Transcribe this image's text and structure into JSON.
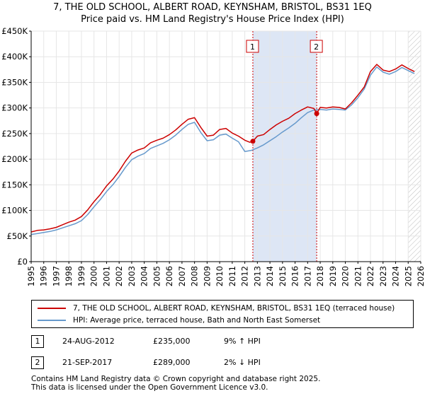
{
  "title": {
    "line1": "7, THE OLD SCHOOL, ALBERT ROAD, KEYNSHAM, BRISTOL, BS31 1EQ",
    "line2": "Price paid vs. HM Land Registry's House Price Index (HPI)"
  },
  "colors": {
    "property": "#cc0000",
    "hpi": "#6699cc",
    "shade": "#dde6f5"
  },
  "chart_data": {
    "type": "line",
    "title": "Price paid vs. HM Land Registry's House Price Index (HPI)",
    "xlabel": "",
    "ylabel": "",
    "xlim": [
      1995,
      2026
    ],
    "ylim": [
      0,
      450000
    ],
    "x_ticks": [
      "1995",
      "1996",
      "1997",
      "1998",
      "1999",
      "2000",
      "2001",
      "2002",
      "2003",
      "2004",
      "2005",
      "2006",
      "2007",
      "2008",
      "2009",
      "2010",
      "2011",
      "2012",
      "2013",
      "2014",
      "2015",
      "2016",
      "2017",
      "2018",
      "2019",
      "2020",
      "2021",
      "2022",
      "2023",
      "2024",
      "2025",
      "2026"
    ],
    "y_ticks": [
      {
        "value": 0,
        "label": "£0"
      },
      {
        "value": 50000,
        "label": "£50K"
      },
      {
        "value": 100000,
        "label": "£100K"
      },
      {
        "value": 150000,
        "label": "£150K"
      },
      {
        "value": 200000,
        "label": "£200K"
      },
      {
        "value": 250000,
        "label": "£250K"
      },
      {
        "value": 300000,
        "label": "£300K"
      },
      {
        "value": 350000,
        "label": "£350K"
      },
      {
        "value": 400000,
        "label": "£400K"
      },
      {
        "value": 450000,
        "label": "£450K"
      }
    ],
    "series": [
      {
        "name": "7, THE OLD SCHOOL, ALBERT ROAD, KEYNSHAM, BRISTOL, BS31 1EQ (terraced house)",
        "color": "#cc0000",
        "x": [
          1995,
          1995.5,
          1996,
          1996.5,
          1997,
          1997.5,
          1998,
          1998.5,
          1999,
          1999.5,
          2000,
          2000.5,
          2001,
          2001.5,
          2002,
          2002.5,
          2003,
          2003.5,
          2004,
          2004.5,
          2005,
          2005.5,
          2006,
          2006.5,
          2007,
          2007.5,
          2008,
          2008.5,
          2009,
          2009.5,
          2010,
          2010.5,
          2011,
          2011.5,
          2012,
          2012.4,
          2012.64,
          2013,
          2013.5,
          2014,
          2014.5,
          2015,
          2015.5,
          2016,
          2016.5,
          2017,
          2017.5,
          2017.72,
          2018,
          2018.5,
          2019,
          2019.5,
          2020,
          2020.5,
          2021,
          2021.5,
          2022,
          2022.5,
          2023,
          2023.5,
          2024,
          2024.5,
          2025,
          2025.5
        ],
        "y": [
          58000,
          61000,
          62000,
          64000,
          67000,
          72000,
          77000,
          81000,
          88000,
          101000,
          117000,
          131000,
          148000,
          161000,
          177000,
          196000,
          212000,
          218000,
          222000,
          232000,
          237000,
          241000,
          248000,
          257000,
          268000,
          278000,
          281000,
          262000,
          245000,
          247000,
          258000,
          260000,
          251000,
          245000,
          237000,
          233000,
          235000,
          245000,
          248000,
          258000,
          267000,
          274000,
          280000,
          289000,
          296000,
          302000,
          299000,
          289000,
          301000,
          300000,
          302000,
          301000,
          298000,
          310000,
          325000,
          341000,
          371000,
          385000,
          374000,
          371000,
          376000,
          384000,
          377000,
          371000
        ]
      },
      {
        "name": "HPI: Average price, terraced house, Bath and North East Somerset",
        "color": "#6699cc",
        "x": [
          1995,
          1995.5,
          1996,
          1996.5,
          1997,
          1997.5,
          1998,
          1998.5,
          1999,
          1999.5,
          2000,
          2000.5,
          2001,
          2001.5,
          2002,
          2002.5,
          2003,
          2003.5,
          2004,
          2004.5,
          2005,
          2005.5,
          2006,
          2006.5,
          2007,
          2007.5,
          2008,
          2008.5,
          2009,
          2009.5,
          2010,
          2010.5,
          2011,
          2011.5,
          2012,
          2012.5,
          2013,
          2013.5,
          2014,
          2014.5,
          2015,
          2015.5,
          2016,
          2016.5,
          2017,
          2017.5,
          2018,
          2018.5,
          2019,
          2019.5,
          2020,
          2020.5,
          2021,
          2021.5,
          2022,
          2022.5,
          2023,
          2023.5,
          2024,
          2024.5,
          2025,
          2025.5
        ],
        "y": [
          53000,
          55000,
          57000,
          59000,
          62000,
          66000,
          70000,
          74000,
          80000,
          92000,
          107000,
          121000,
          137000,
          150000,
          166000,
          184000,
          199000,
          206000,
          211000,
          221000,
          226000,
          231000,
          238000,
          247000,
          258000,
          268000,
          272000,
          252000,
          236000,
          238000,
          247000,
          249000,
          241000,
          234000,
          215000,
          217000,
          222000,
          228000,
          236000,
          244000,
          253000,
          261000,
          270000,
          281000,
          291000,
          296000,
          297000,
          296000,
          298000,
          297000,
          296000,
          306000,
          320000,
          337000,
          364000,
          380000,
          370000,
          366000,
          371000,
          379000,
          373000,
          367000
        ]
      }
    ],
    "sales": [
      {
        "label": "1",
        "x": 2012.64,
        "price": 235000
      },
      {
        "label": "2",
        "x": 2017.72,
        "price": 289000
      }
    ],
    "shaded_range": [
      2012.64,
      2017.72
    ],
    "hatched_from": 2025.0
  },
  "legend": {
    "property": "7, THE OLD SCHOOL, ALBERT ROAD, KEYNSHAM, BRISTOL, BS31 1EQ (terraced house)",
    "hpi": "HPI: Average price, terraced house, Bath and North East Somerset"
  },
  "sales_table": [
    {
      "num": "1",
      "date": "24-AUG-2012",
      "price": "£235,000",
      "rel": "9% ↑ HPI"
    },
    {
      "num": "2",
      "date": "21-SEP-2017",
      "price": "£289,000",
      "rel": "2% ↓ HPI"
    }
  ],
  "footer": {
    "line1": "Contains HM Land Registry data © Crown copyright and database right 2025.",
    "line2": "This data is licensed under the Open Government Licence v3.0."
  }
}
